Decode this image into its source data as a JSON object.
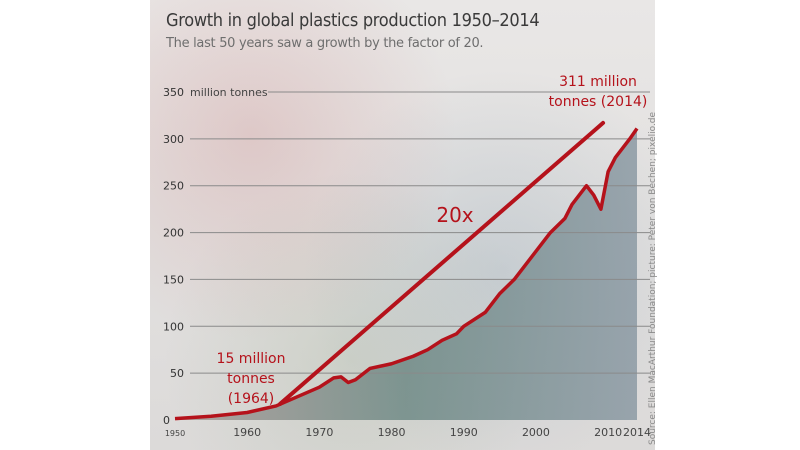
{
  "chart_data": {
    "type": "area",
    "title": "Growth in global plastics production 1950–2014",
    "subtitle": "The last 50 years saw a growth by the factor of 20.",
    "ylabel": "million tonnes",
    "xlabel": "",
    "ylim": [
      0,
      350
    ],
    "xlim": [
      1950,
      2014
    ],
    "yticks": [
      0,
      50,
      100,
      150,
      200,
      250,
      300,
      350
    ],
    "xticks": [
      1950,
      1960,
      1970,
      1980,
      1990,
      2000,
      2010,
      2014
    ],
    "grid": true,
    "series": [
      {
        "name": "Global plastics production",
        "color": "#b5121b",
        "x": [
          1950,
          1955,
          1960,
          1964,
          1967,
          1970,
          1972,
          1973,
          1974,
          1975,
          1977,
          1980,
          1983,
          1985,
          1987,
          1989,
          1990,
          1993,
          1995,
          1997,
          2000,
          2002,
          2004,
          2005,
          2006,
          2007,
          2008,
          2009,
          2010,
          2011,
          2012,
          2013,
          2014
        ],
        "values": [
          1.5,
          4,
          8,
          15,
          25,
          35,
          45,
          46,
          40,
          43,
          55,
          60,
          68,
          75,
          85,
          92,
          100,
          115,
          135,
          150,
          180,
          200,
          215,
          230,
          240,
          250,
          240,
          225,
          265,
          280,
          290,
          300,
          311
        ]
      }
    ],
    "annotations": [
      {
        "text": "15 million tonnes (1964)",
        "lines": [
          "15 million",
          "tonnes",
          "(1964)"
        ],
        "x": 1964,
        "y": 15
      },
      {
        "text": "311 million tonnes (2014)",
        "lines": [
          "311 million",
          "tonnes (2014)"
        ],
        "x": 2014,
        "y": 311
      },
      {
        "text": "20x",
        "type": "trend-line",
        "from": [
          1964,
          15
        ],
        "to": [
          2009.3,
          317
        ]
      }
    ],
    "source": "Source: Ellen MacArthur Foundation; picture: Peter von Bechen; pixelio.de"
  }
}
